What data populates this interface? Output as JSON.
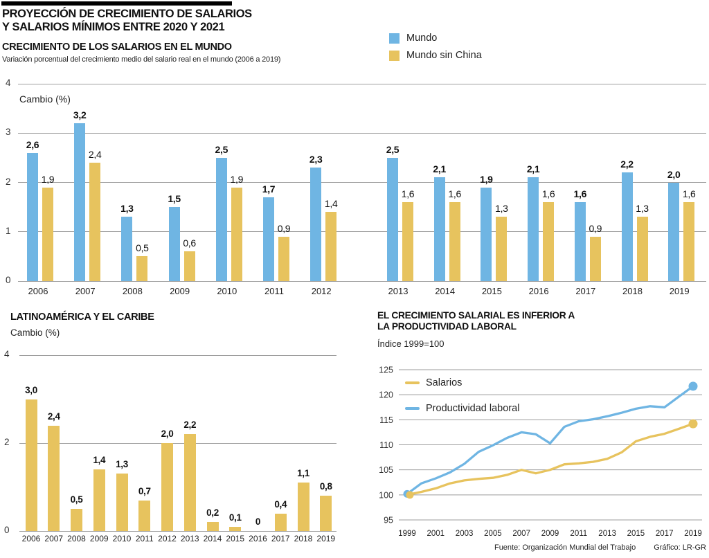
{
  "header": {
    "title_line1": "PROYECCIÓN DE CRECIMIENTO DE SALARIOS",
    "title_line2": "Y SALARIOS MÍNIMOS ENTRE 2020 Y 2021"
  },
  "footer": {
    "source": "Fuente: Organización Mundial del Trabajo",
    "credit": "Gráfico: LR-GR"
  },
  "colors": {
    "blue": "#6FB5E3",
    "yellow": "#E7C35E"
  },
  "chart_data": [
    {
      "id": "world-salary-growth",
      "type": "bar",
      "title": "CRECIMIENTO DE LOS SALARIOS EN EL MUNDO",
      "subtitle": "Variación porcentual del crecimiento medio del salario real en el mundo (2006 a 2019)",
      "ylabel": "Cambio (%)",
      "ylim": [
        0,
        4
      ],
      "yticks": [
        0,
        1,
        2,
        3,
        4
      ],
      "grid": true,
      "legend_position": "top-right",
      "group_gap_after": "2012",
      "categories": [
        "2006",
        "2007",
        "2008",
        "2009",
        "2010",
        "2011",
        "2012",
        "2013",
        "2014",
        "2015",
        "2016",
        "2017",
        "2018",
        "2019"
      ],
      "series": [
        {
          "name": "Mundo",
          "color": "#6FB5E3",
          "values": [
            2.6,
            3.2,
            1.3,
            1.5,
            2.5,
            1.7,
            2.3,
            2.5,
            2.1,
            1.9,
            2.1,
            1.6,
            2.2,
            2.0
          ],
          "labels": [
            "2,6",
            "3,2",
            "1,3",
            "1,5",
            "2,5",
            "1,7",
            "2,3",
            "2,5",
            "2,1",
            "1,9",
            "2,1",
            "1,6",
            "2,2",
            "2,0"
          ]
        },
        {
          "name": "Mundo sin China",
          "color": "#E7C35E",
          "values": [
            1.9,
            2.4,
            0.5,
            0.6,
            1.9,
            0.9,
            1.4,
            1.6,
            1.6,
            1.3,
            1.6,
            0.9,
            1.3,
            1.6
          ],
          "labels": [
            "1,9",
            "2,4",
            "0,5",
            "0,6",
            "1,9",
            "0,9",
            "1,4",
            "1,6",
            "1,6",
            "1,3",
            "1,6",
            "0,9",
            "1,3",
            "1,6"
          ]
        }
      ]
    },
    {
      "id": "latam-caribbean",
      "type": "bar",
      "title": "LATINOAMÉRICA Y EL CARIBE",
      "ylabel": "Cambio (%)",
      "ylim": [
        0,
        4
      ],
      "yticks": [
        0,
        2,
        4
      ],
      "grid": true,
      "categories": [
        "2006",
        "2007",
        "2008",
        "2009",
        "2010",
        "2011",
        "2012",
        "2013",
        "2014",
        "2015",
        "2016",
        "2017",
        "2018",
        "2019"
      ],
      "series": [
        {
          "name": "Latinoamérica y el Caribe",
          "color": "#E7C35E",
          "values": [
            3.0,
            2.4,
            0.5,
            1.4,
            1.3,
            0.7,
            2.0,
            2.2,
            0.2,
            0.1,
            0,
            0.4,
            1.1,
            0.8
          ],
          "labels": [
            "3,0",
            "2,4",
            "0,5",
            "1,4",
            "1,3",
            "0,7",
            "2,0",
            "2,2",
            "0,2",
            "0,1",
            "0",
            "0,4",
            "1,1",
            "0,8"
          ]
        }
      ]
    },
    {
      "id": "productivity-vs-wages",
      "type": "line",
      "title_line1": "EL CRECIMIENTO SALARIAL ES INFERIOR A",
      "title_line2": "LA PRODUCTIVIDAD LABORAL",
      "subtitle": "Índice 1999=100",
      "ylim": [
        95,
        125
      ],
      "yticks": [
        95,
        100,
        105,
        110,
        115,
        120,
        125
      ],
      "grid": true,
      "legend_position": "top-left-inside",
      "x": [
        1999,
        2000,
        2001,
        2002,
        2003,
        2004,
        2005,
        2006,
        2007,
        2008,
        2009,
        2010,
        2011,
        2012,
        2013,
        2014,
        2015,
        2016,
        2017,
        2018,
        2019
      ],
      "xticks": [
        1999,
        2001,
        2003,
        2005,
        2007,
        2009,
        2011,
        2013,
        2015,
        2017,
        2019
      ],
      "series": [
        {
          "name": "Salarios",
          "color": "#E7C35E",
          "values": [
            100,
            100.6,
            101.3,
            102.3,
            102.9,
            103.2,
            103.4,
            104.0,
            105.0,
            104.3,
            105.0,
            106.1,
            106.3,
            106.6,
            107.2,
            108.5,
            110.7,
            111.6,
            112.2,
            113.2,
            114.2
          ]
        },
        {
          "name": "Productividad laboral",
          "color": "#6FB5E3",
          "values": [
            100.2,
            102.3,
            103.3,
            104.5,
            106.2,
            108.6,
            109.9,
            111.4,
            112.5,
            112.1,
            110.3,
            113.6,
            114.7,
            115.1,
            115.7,
            116.4,
            117.2,
            117.7,
            117.5,
            119.6,
            121.7
          ]
        }
      ]
    }
  ]
}
